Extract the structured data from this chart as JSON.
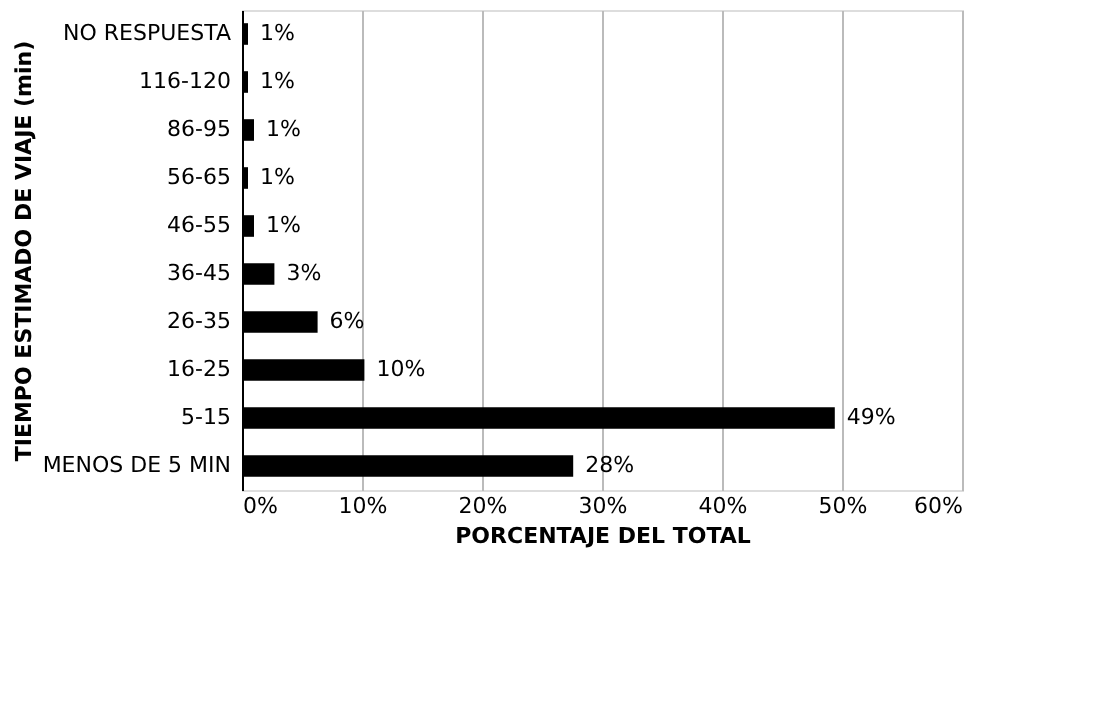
{
  "chart_data": {
    "type": "bar",
    "orientation": "horizontal",
    "xlabel": "PORCENTAJE DEL TOTAL",
    "ylabel": "TIEMPO ESTIMADO DE VIAJE (min)",
    "categories": [
      "NO RESPUESTA",
      "116-120",
      "86-95",
      "56-65",
      "46-55",
      "36-45",
      "26-35",
      "16-25",
      "5-15",
      "MENOS DE 5 MIN"
    ],
    "values": [
      0.5,
      0.5,
      1.0,
      0.5,
      1.0,
      2.7,
      6.3,
      10.2,
      49.4,
      27.6
    ],
    "value_labels": [
      "1%",
      "1%",
      "1%",
      "1%",
      "1%",
      "3%",
      "6%",
      "10%",
      "49%",
      "28%"
    ],
    "color": "#000000",
    "xlim": [
      0,
      60
    ],
    "xticks": [
      {
        "value": 0,
        "label": "0%"
      },
      {
        "value": 10,
        "label": "10%"
      },
      {
        "value": 20,
        "label": "20%"
      },
      {
        "value": 30,
        "label": "30%"
      },
      {
        "value": 40,
        "label": "40%"
      },
      {
        "value": 50,
        "label": "50%"
      },
      {
        "value": 60,
        "label": "60%"
      }
    ],
    "grid": "x"
  }
}
